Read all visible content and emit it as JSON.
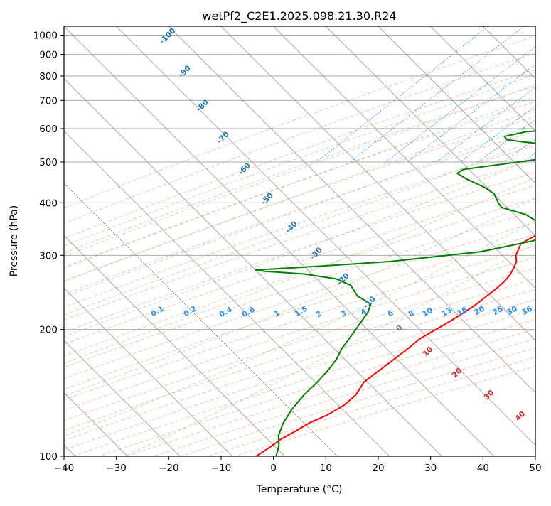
{
  "chart_data": {
    "type": "line",
    "title": "wetPf2_C2E1.2025.098.21.30.R24",
    "xlabel": "Temperature (°C)",
    "ylabel": "Pressure (hPa)",
    "xlim": [
      -40,
      50
    ],
    "ylim": [
      1050,
      100
    ],
    "y_scale": "log",
    "grid": true,
    "x_ticks": [
      -40,
      -30,
      -20,
      -10,
      0,
      10,
      20,
      30,
      40,
      50
    ],
    "y_ticks": [
      100,
      200,
      300,
      400,
      500,
      600,
      700,
      800,
      900,
      1000
    ],
    "colors": {
      "temperature": "#ff0000",
      "dewpoint": "#008000",
      "dry_adiabat": "#ff7f50",
      "moist_adiabat": "#2ca02c",
      "mixing_ratio": "#1e90ff",
      "isotherm": "#808080"
    },
    "series": [
      {
        "key": "temperature",
        "points": [
          [
            34.2,
            975
          ],
          [
            34.3,
            950
          ],
          [
            34.0,
            925
          ],
          [
            33.0,
            900
          ],
          [
            31.5,
            870
          ],
          [
            29.5,
            840
          ],
          [
            27.5,
            800
          ],
          [
            26.0,
            760
          ],
          [
            24.6,
            720
          ],
          [
            23.3,
            690
          ],
          [
            21.7,
            660
          ],
          [
            20.7,
            630
          ],
          [
            20.1,
            614
          ],
          [
            20.3,
            598
          ],
          [
            20.6,
            585
          ],
          [
            20.5,
            570
          ],
          [
            20.0,
            550
          ],
          [
            19.4,
            530
          ],
          [
            19.1,
            510
          ],
          [
            18.9,
            490
          ],
          [
            18.5,
            470
          ],
          [
            17.5,
            450
          ],
          [
            15.6,
            425
          ],
          [
            14.4,
            410
          ],
          [
            12.4,
            385
          ],
          [
            10.6,
            365
          ],
          [
            8.8,
            345
          ],
          [
            6.6,
            320
          ],
          [
            7.9,
            300
          ],
          [
            9.2,
            290
          ],
          [
            9.9,
            280
          ],
          [
            10.5,
            270
          ],
          [
            10.7,
            260
          ],
          [
            10.5,
            250
          ],
          [
            10.1,
            240
          ],
          [
            9.7,
            230
          ],
          [
            9.0,
            220
          ],
          [
            8.0,
            210
          ],
          [
            6.8,
            200
          ],
          [
            5.5,
            190
          ],
          [
            5.1,
            180
          ],
          [
            4.5,
            170
          ],
          [
            3.8,
            160
          ],
          [
            3.1,
            150
          ],
          [
            4.0,
            140
          ],
          [
            3.7,
            132
          ],
          [
            2.3,
            125
          ],
          [
            0.5,
            120
          ],
          [
            -0.5,
            115
          ],
          [
            -1.8,
            110
          ],
          [
            -2.4,
            105
          ],
          [
            -3.3,
            100
          ]
        ]
      },
      {
        "key": "dewpoint",
        "points": [
          [
            3.8,
            975
          ],
          [
            3.5,
            960
          ],
          [
            1.4,
            945
          ],
          [
            0.5,
            930
          ],
          [
            1.6,
            905
          ],
          [
            1.0,
            880
          ],
          [
            0.6,
            860
          ],
          [
            1.5,
            840
          ],
          [
            1.8,
            815
          ],
          [
            2.0,
            790
          ],
          [
            3.4,
            770
          ],
          [
            4.1,
            745
          ],
          [
            3.8,
            720
          ],
          [
            4.5,
            695
          ],
          [
            4.4,
            670
          ],
          [
            4.6,
            650
          ],
          [
            4.8,
            630
          ],
          [
            4.1,
            615
          ],
          [
            -13.7,
            590
          ],
          [
            -17.0,
            575
          ],
          [
            -15.9,
            565
          ],
          [
            -12.5,
            558
          ],
          [
            -7.0,
            550
          ],
          [
            -2.5,
            540
          ],
          [
            -1.5,
            525
          ],
          [
            -5.0,
            510
          ],
          [
            -18.5,
            480
          ],
          [
            -19.0,
            470
          ],
          [
            -16.0,
            455
          ],
          [
            -11.0,
            435
          ],
          [
            -8.0,
            420
          ],
          [
            -5.5,
            400
          ],
          [
            -4.0,
            390
          ],
          [
            2.0,
            375
          ],
          [
            7.0,
            355
          ],
          [
            9.0,
            340
          ],
          [
            8.5,
            325
          ],
          [
            0.5,
            306
          ],
          [
            -15.0,
            290
          ],
          [
            -29.0,
            282
          ],
          [
            -39.0,
            277
          ],
          [
            -37.0,
            275
          ],
          [
            -29.0,
            271
          ],
          [
            -22.0,
            264
          ],
          [
            -18.0,
            255
          ],
          [
            -14.5,
            240
          ],
          [
            -10.5,
            230
          ],
          [
            -9.5,
            220
          ],
          [
            -9.0,
            210
          ],
          [
            -8.5,
            200
          ],
          [
            -8.0,
            190
          ],
          [
            -7.5,
            180
          ],
          [
            -6.5,
            170
          ],
          [
            -6.0,
            160
          ],
          [
            -5.8,
            150
          ],
          [
            -5.9,
            140
          ],
          [
            -5.5,
            130
          ],
          [
            -4.5,
            120
          ],
          [
            -3.0,
            112
          ],
          [
            -1.0,
            106
          ],
          [
            0.5,
            100
          ]
        ]
      }
    ],
    "annotations": {
      "moist_adiabat_labels": [
        "-100",
        "-90",
        "-80",
        "-70",
        "-60",
        "-50",
        "-40",
        "-30",
        "-20",
        "-10"
      ],
      "mixing_ratio_labels": [
        "0.1",
        "0.2",
        "0.4",
        "0.6",
        "1",
        "1.5",
        "2",
        "3",
        "4",
        "6",
        "8",
        "10",
        "13",
        "16",
        "20",
        "25",
        "30",
        "36"
      ],
      "dry_adiabat_labels": [
        "0",
        "10",
        "20",
        "30",
        "40"
      ]
    }
  }
}
